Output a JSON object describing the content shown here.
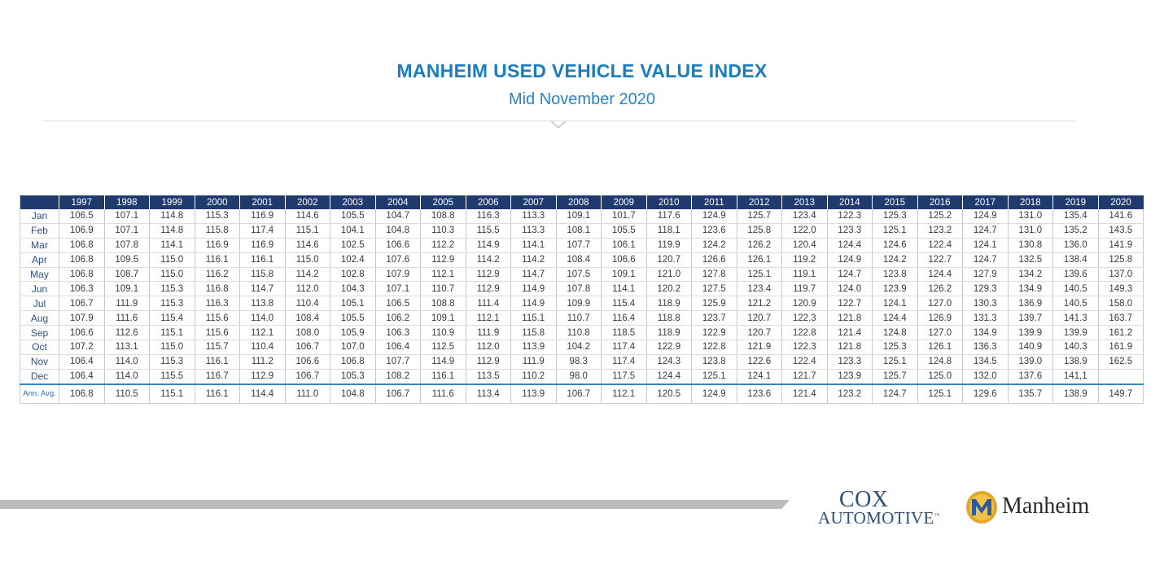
{
  "header": {
    "title": "MANHEIM USED VEHICLE VALUE INDEX",
    "subtitle": "Mid November 2020"
  },
  "logos": {
    "cox_line1": "COX",
    "cox_line2": "AUTOMOTIVE",
    "cox_tm": "™",
    "manheim": "Manheim",
    "manheim_icon": "manheim-m-shield-icon"
  },
  "colors": {
    "title": "#1a7cc1",
    "header_bg": "#1f3a6e",
    "accent_line": "#2f86c8"
  },
  "chart_data": {
    "type": "table",
    "title": "MANHEIM USED VEHICLE VALUE INDEX",
    "subtitle": "Mid November 2020",
    "columns": [
      "1997",
      "1998",
      "1999",
      "2000",
      "2001",
      "2002",
      "2003",
      "2004",
      "2005",
      "2006",
      "2007",
      "2008",
      "2009",
      "2010",
      "2011",
      "2012",
      "2013",
      "2014",
      "2015",
      "2016",
      "2017",
      "2018",
      "2019",
      "2020"
    ],
    "rows": [
      {
        "label": "Jan",
        "values": [
          "106.5",
          "107.1",
          "114.8",
          "115.3",
          "116.9",
          "114.6",
          "105.5",
          "104.7",
          "108.8",
          "116.3",
          "113.3",
          "109.1",
          "101.7",
          "117.6",
          "124.9",
          "125.7",
          "123.4",
          "122.3",
          "125.3",
          "125.2",
          "124.9",
          "131.0",
          "135.4",
          "141.6"
        ]
      },
      {
        "label": "Feb",
        "values": [
          "106.9",
          "107.1",
          "114.8",
          "115.8",
          "117.4",
          "115.1",
          "104.1",
          "104.8",
          "110.3",
          "115.5",
          "113.3",
          "108.1",
          "105.5",
          "118.1",
          "123.6",
          "125.8",
          "122.0",
          "123.3",
          "125.1",
          "123.2",
          "124.7",
          "131.0",
          "135.2",
          "143.5"
        ]
      },
      {
        "label": "Mar",
        "values": [
          "106.8",
          "107.8",
          "114.1",
          "116.9",
          "116.9",
          "114.6",
          "102.5",
          "106.6",
          "112.2",
          "114.9",
          "114.1",
          "107.7",
          "106.1",
          "119.9",
          "124.2",
          "126.2",
          "120.4",
          "124.4",
          "124.6",
          "122.4",
          "124.1",
          "130.8",
          "136.0",
          "141.9"
        ]
      },
      {
        "label": "Apr",
        "values": [
          "106.8",
          "109.5",
          "115.0",
          "116.1",
          "116.1",
          "115.0",
          "102.4",
          "107.6",
          "112.9",
          "114.2",
          "114.2",
          "108.4",
          "106.6",
          "120.7",
          "126.6",
          "126.1",
          "119.2",
          "124.9",
          "124.2",
          "122.7",
          "124.7",
          "132.5",
          "138.4",
          "125.8"
        ]
      },
      {
        "label": "May",
        "values": [
          "106.8",
          "108.7",
          "115.0",
          "116.2",
          "115.8",
          "114.2",
          "102.8",
          "107.9",
          "112.1",
          "112.9",
          "114.7",
          "107.5",
          "109.1",
          "121.0",
          "127.8",
          "125.1",
          "119.1",
          "124.7",
          "123.8",
          "124.4",
          "127.9",
          "134.2",
          "139.6",
          "137.0"
        ]
      },
      {
        "label": "Jun",
        "values": [
          "106.3",
          "109.1",
          "115.3",
          "116.8",
          "114.7",
          "112.0",
          "104.3",
          "107.1",
          "110.7",
          "112.9",
          "114.9",
          "107.8",
          "114.1",
          "120.2",
          "127.5",
          "123.4",
          "119.7",
          "124.0",
          "123.9",
          "126.2",
          "129.3",
          "134.9",
          "140.5",
          "149.3"
        ]
      },
      {
        "label": "Jul",
        "values": [
          "106.7",
          "111.9",
          "115.3",
          "116.3",
          "113.8",
          "110.4",
          "105.1",
          "106.5",
          "108.8",
          "111.4",
          "114.9",
          "109.9",
          "115.4",
          "118.9",
          "125.9",
          "121.2",
          "120.9",
          "122.7",
          "124.1",
          "127.0",
          "130.3",
          "136.9",
          "140.5",
          "158.0"
        ]
      },
      {
        "label": "Aug",
        "values": [
          "107.9",
          "111.6",
          "115.4",
          "115.6",
          "114.0",
          "108.4",
          "105.5",
          "106.2",
          "109.1",
          "112.1",
          "115.1",
          "110.7",
          "116.4",
          "118.8",
          "123.7",
          "120.7",
          "122.3",
          "121.8",
          "124.4",
          "126.9",
          "131.3",
          "139.7",
          "141.3",
          "163.7"
        ]
      },
      {
        "label": "Sep",
        "values": [
          "106.6",
          "112.6",
          "115.1",
          "115.6",
          "112.1",
          "108.0",
          "105.9",
          "106.3",
          "110.9",
          "111.9",
          "115.8",
          "110.8",
          "118.5",
          "118.9",
          "122.9",
          "120.7",
          "122.8",
          "121.4",
          "124.8",
          "127.0",
          "134.9",
          "139.9",
          "139.9",
          "161.2"
        ]
      },
      {
        "label": "Oct",
        "values": [
          "107.2",
          "113.1",
          "115.0",
          "115.7",
          "110.4",
          "106.7",
          "107.0",
          "106.4",
          "112.5",
          "112.0",
          "113.9",
          "104.2",
          "117.4",
          "122.9",
          "122.8",
          "121.9",
          "122.3",
          "121.8",
          "125.3",
          "126.1",
          "136.3",
          "140.9",
          "140.3",
          "161.9"
        ]
      },
      {
        "label": "Nov",
        "values": [
          "106.4",
          "114.0",
          "115.3",
          "116.1",
          "111.2",
          "106.6",
          "106.8",
          "107.7",
          "114.9",
          "112.9",
          "111.9",
          "98.3",
          "117.4",
          "124.3",
          "123.8",
          "122.6",
          "122.4",
          "123.3",
          "125.1",
          "124.8",
          "134.5",
          "139.0",
          "138.9",
          "162.5"
        ]
      },
      {
        "label": "Dec",
        "values": [
          "106.4",
          "114.0",
          "115.5",
          "116.7",
          "112.9",
          "106.7",
          "105.3",
          "108.2",
          "116.1",
          "113.5",
          "110.2",
          "98.0",
          "117.5",
          "124.4",
          "125.1",
          "124.1",
          "121.7",
          "123.9",
          "125.7",
          "125.0",
          "132.0",
          "137.6",
          "141,1",
          ""
        ]
      }
    ],
    "footer": {
      "label": "Ann. Avg.",
      "values": [
        "106.8",
        "110.5",
        "115.1",
        "116.1",
        "114.4",
        "111.0",
        "104.8",
        "106.7",
        "111.6",
        "113.4",
        "113.9",
        "106.7",
        "112.1",
        "120.5",
        "124.9",
        "123.6",
        "121.4",
        "123.2",
        "124.7",
        "125.1",
        "129.6",
        "135.7",
        "138.9",
        "149.7"
      ]
    }
  }
}
